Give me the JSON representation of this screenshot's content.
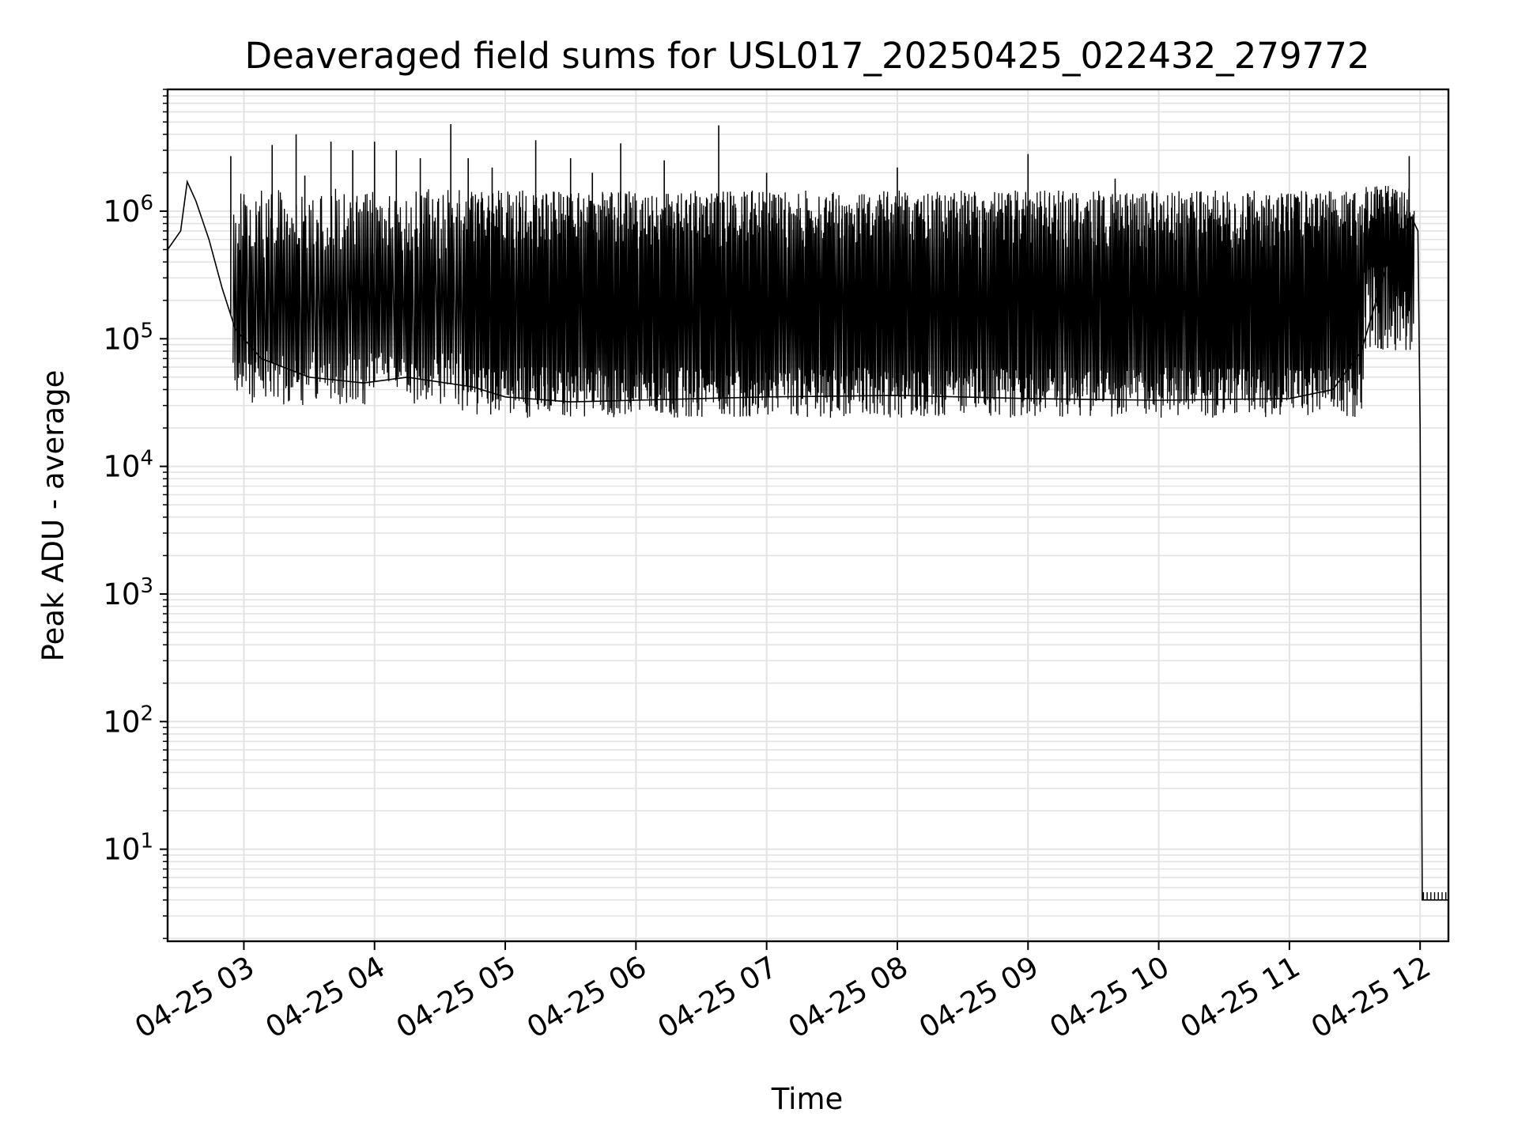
{
  "chart_data": {
    "type": "line",
    "title": "Deaveraged field sums for USL017_20250425_022432_279772",
    "xlabel": "Time",
    "ylabel": "Peak ADU - average",
    "y_scale": "log",
    "ylim": [
      1.9,
      9000000
    ],
    "xlim": [
      "2025-04-25 02:25",
      "2025-04-25 12:13"
    ],
    "grid": true,
    "x_ticks": [
      "04-25 03",
      "04-25 04",
      "04-25 05",
      "04-25 06",
      "04-25 07",
      "04-25 08",
      "04-25 09",
      "04-25 10",
      "04-25 11",
      "04-25 12"
    ],
    "y_ticks": [
      {
        "base": "10",
        "exp": "1"
      },
      {
        "base": "10",
        "exp": "2"
      },
      {
        "base": "10",
        "exp": "3"
      },
      {
        "base": "10",
        "exp": "4"
      },
      {
        "base": "10",
        "exp": "5"
      },
      {
        "base": "10",
        "exp": "6"
      }
    ],
    "series": [
      {
        "color": "#000000",
        "points": [
          [
            "2025-04-25 02:25",
            500000
          ],
          [
            "2025-04-25 02:31",
            700000
          ],
          [
            "2025-04-25 02:34",
            1700000
          ],
          [
            "2025-04-25 02:38",
            1200000
          ],
          [
            "2025-04-25 02:44",
            600000
          ],
          [
            "2025-04-25 02:50",
            250000
          ],
          [
            "2025-04-25 02:56",
            120000
          ],
          [
            "2025-04-25 03:00",
            100000
          ],
          [
            "2025-04-25 03:08",
            70000
          ],
          [
            "2025-04-25 03:30",
            50000
          ],
          [
            "2025-04-25 03:55",
            45000
          ],
          [
            "2025-04-25 04:15",
            50000
          ],
          [
            "2025-04-25 04:45",
            42000
          ],
          [
            "2025-04-25 05:00",
            35000
          ],
          [
            "2025-04-25 05:30",
            32000
          ],
          [
            "2025-04-25 06:00",
            33000
          ],
          [
            "2025-04-25 07:00",
            35000
          ],
          [
            "2025-04-25 08:00",
            36000
          ],
          [
            "2025-04-25 09:00",
            34000
          ],
          [
            "2025-04-25 10:00",
            33000
          ],
          [
            "2025-04-25 11:00",
            34000
          ],
          [
            "2025-04-25 11:20",
            40000
          ],
          [
            "2025-04-25 11:33",
            80000
          ],
          [
            "2025-04-25 11:45",
            400000
          ],
          [
            "2025-04-25 11:56",
            900000
          ],
          [
            "2025-04-25 11:59",
            700000
          ],
          [
            "2025-04-25 12:00",
            20000
          ],
          [
            "2025-04-25 12:01",
            4
          ],
          [
            "2025-04-25 12:13",
            4
          ]
        ],
        "spikes": [
          {
            "from": "2025-04-25 02:55",
            "to": "2025-04-25 04:40",
            "low": [
              30000,
              80000
            ],
            "high": [
              400000,
              1500000
            ],
            "n": 160
          },
          {
            "from": "2025-04-25 04:40",
            "to": "2025-04-25 11:34",
            "low": [
              24000,
              60000
            ],
            "high": [
              500000,
              1450000
            ],
            "n": 900
          },
          {
            "from": "2025-04-25 11:34",
            "to": "2025-04-25 11:57",
            "low": [
              80000,
              400000
            ],
            "high": [
              700000,
              1600000
            ],
            "n": 60
          }
        ],
        "peaks": [
          [
            "2025-04-25 02:54",
            2700000
          ],
          [
            "2025-04-25 03:00",
            1200000
          ],
          [
            "2025-04-25 03:13",
            3300000
          ],
          [
            "2025-04-25 03:24",
            4000000
          ],
          [
            "2025-04-25 03:28",
            1900000
          ],
          [
            "2025-04-25 03:40",
            3500000
          ],
          [
            "2025-04-25 03:50",
            3000000
          ],
          [
            "2025-04-25 04:00",
            3500000
          ],
          [
            "2025-04-25 04:10",
            3000000
          ],
          [
            "2025-04-25 04:21",
            2600000
          ],
          [
            "2025-04-25 04:35",
            4800000
          ],
          [
            "2025-04-25 04:43",
            2600000
          ],
          [
            "2025-04-25 04:54",
            2200000
          ],
          [
            "2025-04-25 05:14",
            3600000
          ],
          [
            "2025-04-25 05:30",
            2600000
          ],
          [
            "2025-04-25 05:40",
            2000000
          ],
          [
            "2025-04-25 05:53",
            3400000
          ],
          [
            "2025-04-25 06:13",
            2500000
          ],
          [
            "2025-04-25 06:38",
            4700000
          ],
          [
            "2025-04-25 07:00",
            2000000
          ],
          [
            "2025-04-25 08:00",
            2200000
          ],
          [
            "2025-04-25 09:00",
            2800000
          ],
          [
            "2025-04-25 09:40",
            1800000
          ],
          [
            "2025-04-25 11:55",
            2700000
          ]
        ]
      }
    ]
  }
}
